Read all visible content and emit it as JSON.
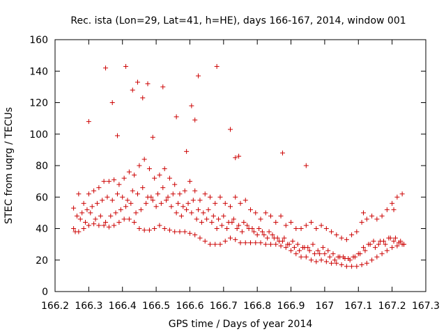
{
  "chart_data": {
    "type": "scatter",
    "title": "Rec. ista (Lon=29, Lat=41, h=HE), days 166-167, 2014, window 001",
    "xlabel": "GPS time / Days of year 2014",
    "ylabel": "STEC from uqrg / TECUs",
    "xlim": [
      166.2,
      167.3
    ],
    "ylim": [
      0,
      160
    ],
    "xticks": [
      166.2,
      166.3,
      166.4,
      166.5,
      166.6,
      166.7,
      166.8,
      166.9,
      167.0,
      167.1,
      167.2,
      167.3
    ],
    "xtick_labels": [
      "166.2",
      "166.3",
      "166.4",
      "166.5",
      "166.6",
      "166.7",
      "166.8",
      "166.9",
      "167",
      "167.1",
      "167.2",
      "167.3"
    ],
    "yticks": [
      0,
      20,
      40,
      60,
      80,
      100,
      120,
      140,
      160
    ],
    "ytick_labels": [
      "0",
      "20",
      "40",
      "60",
      "80",
      "100",
      "120",
      "140",
      "160"
    ],
    "grid": false,
    "legend": "none",
    "marker": "plus",
    "color": "#cc0000",
    "series": [
      {
        "name": "STEC",
        "x": [
          166.255,
          166.27,
          166.285,
          166.3,
          166.315,
          166.33,
          166.345,
          166.36,
          166.375,
          166.39,
          166.405,
          166.42,
          166.435,
          166.45,
          166.465,
          166.48,
          166.495,
          166.51,
          166.525,
          166.54,
          166.555,
          166.57,
          166.585,
          166.6,
          166.615,
          166.63,
          166.645,
          166.66,
          166.675,
          166.69,
          166.705,
          166.72,
          166.735,
          166.75,
          166.765,
          166.78,
          166.795,
          166.81,
          166.825,
          166.84,
          166.855,
          166.87,
          166.885,
          166.9,
          166.915,
          166.93,
          166.945,
          166.96,
          166.975,
          166.99,
          167.005,
          167.02,
          167.035,
          167.05,
          167.065,
          167.08,
          167.095,
          167.11,
          167.125,
          167.14,
          167.155,
          167.17,
          167.185,
          167.2,
          167.215,
          167.23,
          166.255,
          166.27,
          166.285,
          166.3,
          166.315,
          166.33,
          166.345,
          166.36,
          166.375,
          166.39,
          166.405,
          166.42,
          166.435,
          166.45,
          166.465,
          166.48,
          166.495,
          166.51,
          166.525,
          166.54,
          166.555,
          166.57,
          166.585,
          166.6,
          166.615,
          166.63,
          166.645,
          166.66,
          166.675,
          166.69,
          166.705,
          166.72,
          166.735,
          166.75,
          166.765,
          166.78,
          166.795,
          166.81,
          166.825,
          166.84,
          166.855,
          166.87,
          166.885,
          166.9,
          166.915,
          166.93,
          166.945,
          166.96,
          166.975,
          166.99,
          167.005,
          167.02,
          167.035,
          167.05,
          167.065,
          167.08,
          167.095,
          167.11,
          167.125,
          167.14,
          167.155,
          167.17,
          167.185,
          167.2,
          167.215,
          167.23,
          166.26,
          166.275,
          166.29,
          166.305,
          166.32,
          166.335,
          166.35,
          166.365,
          166.38,
          166.395,
          166.41,
          166.425,
          166.44,
          166.455,
          166.47,
          166.485,
          166.5,
          166.515,
          166.53,
          166.545,
          166.56,
          166.575,
          166.59,
          166.605,
          166.62,
          166.635,
          166.65,
          166.665,
          166.68,
          166.695,
          166.71,
          166.725,
          166.74,
          166.755,
          166.77,
          166.785,
          166.8,
          166.815,
          166.83,
          166.845,
          166.86,
          166.875,
          166.89,
          166.905,
          166.92,
          166.935,
          166.95,
          166.965,
          166.98,
          166.995,
          167.01,
          167.025,
          167.04,
          167.055,
          167.07,
          167.085,
          167.1,
          167.115,
          167.13,
          167.145,
          167.16,
          167.175,
          167.19,
          167.205,
          167.22,
          167.235,
          166.265,
          166.28,
          166.295,
          166.31,
          166.325,
          166.34,
          166.355,
          166.37,
          166.385,
          166.4,
          166.415,
          166.43,
          166.445,
          166.46,
          166.475,
          166.49,
          166.505,
          166.52,
          166.535,
          166.55,
          166.565,
          166.58,
          166.595,
          166.61,
          166.625,
          166.64,
          166.655,
          166.67,
          166.685,
          166.7,
          166.715,
          166.73,
          166.745,
          166.76,
          166.775,
          166.79,
          166.805,
          166.82,
          166.835,
          166.85,
          166.865,
          166.88,
          166.895,
          166.91,
          166.925,
          166.94,
          166.955,
          166.97,
          166.985,
          167.0,
          167.015,
          167.03,
          167.045,
          167.06,
          167.075,
          167.09,
          167.105,
          167.12,
          167.135,
          167.15,
          167.165,
          167.18,
          167.195,
          167.21,
          167.225,
          167.235,
          166.3,
          166.35,
          166.37,
          166.385,
          166.41,
          166.43,
          166.445,
          166.46,
          166.475,
          166.49,
          166.52,
          166.56,
          166.59,
          166.605,
          166.615,
          166.625,
          166.68,
          166.72,
          166.735,
          166.745,
          166.875,
          166.945,
          167.115,
          167.205
        ],
        "y": [
          53,
          62,
          56,
          62,
          64,
          66,
          70,
          70,
          71,
          68,
          72,
          76,
          74,
          80,
          84,
          78,
          72,
          74,
          78,
          72,
          68,
          62,
          64,
          70,
          64,
          58,
          62,
          60,
          56,
          60,
          56,
          54,
          60,
          56,
          58,
          52,
          50,
          46,
          50,
          48,
          44,
          48,
          42,
          44,
          40,
          40,
          42,
          44,
          40,
          42,
          40,
          38,
          36,
          34,
          33,
          36,
          38,
          44,
          46,
          48,
          46,
          48,
          52,
          56,
          60,
          62,
          40,
          38,
          40,
          42,
          43,
          42,
          42,
          41,
          42,
          44,
          46,
          46,
          44,
          40,
          39,
          39,
          40,
          42,
          40,
          39,
          38,
          38,
          38,
          37,
          36,
          34,
          32,
          30,
          30,
          30,
          32,
          34,
          33,
          31,
          31,
          31,
          31,
          31,
          30,
          30,
          30,
          29,
          28,
          26,
          24,
          22,
          22,
          20,
          19,
          20,
          19,
          18,
          18,
          17,
          16,
          16,
          16,
          17,
          18,
          20,
          22,
          24,
          26,
          28,
          29,
          30,
          38,
          46,
          44,
          50,
          46,
          48,
          44,
          48,
          50,
          52,
          54,
          56,
          50,
          52,
          56,
          60,
          54,
          56,
          58,
          54,
          50,
          48,
          52,
          50,
          46,
          44,
          46,
          44,
          40,
          42,
          40,
          44,
          40,
          38,
          42,
          40,
          36,
          38,
          34,
          36,
          34,
          32,
          30,
          32,
          30,
          28,
          28,
          30,
          26,
          28,
          26,
          24,
          22,
          22,
          21,
          22,
          24,
          28,
          30,
          32,
          30,
          32,
          34,
          32,
          31,
          30,
          48,
          50,
          52,
          54,
          56,
          58,
          60,
          58,
          62,
          60,
          58,
          64,
          62,
          66,
          60,
          58,
          62,
          66,
          60,
          62,
          56,
          54,
          56,
          58,
          52,
          50,
          52,
          48,
          46,
          48,
          44,
          46,
          42,
          44,
          40,
          38,
          40,
          36,
          38,
          34,
          32,
          34,
          30,
          28,
          26,
          28,
          26,
          24,
          24,
          24,
          22,
          20,
          22,
          21,
          20,
          22,
          24,
          26,
          30,
          28,
          32,
          30,
          34,
          34,
          32,
          30,
          108,
          142,
          120,
          99,
          143,
          128,
          133,
          123,
          132,
          98,
          130,
          111,
          89,
          118,
          109,
          137,
          143,
          103,
          85,
          86,
          88,
          80,
          50,
          52
        ]
      }
    ]
  }
}
